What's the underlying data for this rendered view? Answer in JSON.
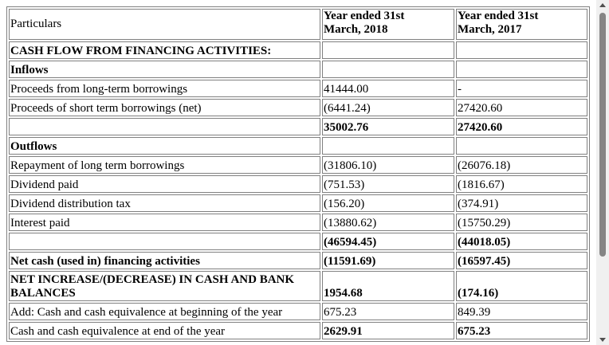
{
  "table": {
    "header": {
      "particulars": "Particulars",
      "col2018_line1": "Year ended 31st",
      "col2018_line2": "March, 2018",
      "col2017_line1": "Year ended 31st",
      "col2017_line2": "March, 2017"
    },
    "rows": [
      {
        "label": "CASH FLOW FROM FINANCING ACTIVITIES:",
        "y2018": "",
        "y2017": ""
      },
      {
        "label": "Inflows",
        "y2018": "",
        "y2017": ""
      },
      {
        "label": "Proceeds from long-term borrowings",
        "y2018": "41444.00",
        "y2017": "-"
      },
      {
        "label": "Proceeds of short term borrowings (net)",
        "y2018": "(6441.24)",
        "y2017": "27420.60"
      },
      {
        "label": "",
        "y2018": "35002.76",
        "y2017": "27420.60"
      },
      {
        "label": "Outflows",
        "y2018": "",
        "y2017": ""
      },
      {
        "label": "Repayment of long term borrowings",
        "y2018": "(31806.10)",
        "y2017": "(26076.18)"
      },
      {
        "label": "Dividend paid",
        "y2018": "(751.53)",
        "y2017": "(1816.67)"
      },
      {
        "label": "Dividend distribution tax",
        "y2018": "(156.20)",
        "y2017": "(374.91)"
      },
      {
        "label": "Interest paid",
        "y2018": "(13880.62)",
        "y2017": "(15750.29)"
      },
      {
        "label": "",
        "y2018": "(46594.45)",
        "y2017": "(44018.05)"
      },
      {
        "label": "Net cash (used in) financing activities",
        "y2018": "(11591.69)",
        "y2017": "(16597.45)"
      },
      {
        "label_line1": "NET INCREASE/(DECREASE) IN CASH AND BANK",
        "label_line2": "BALANCES",
        "y2018": "1954.68",
        "y2017": "(174.16)"
      },
      {
        "label": "Add: Cash and cash equivalence at beginning of the year",
        "y2018": "675.23",
        "y2017": "849.39"
      },
      {
        "label": "Cash and cash equivalence at end of the year",
        "y2018": "2629.91",
        "y2017": "675.23"
      }
    ]
  },
  "scrollbar": {
    "up_icon": "triangle-up",
    "down_icon": "triangle-down"
  }
}
